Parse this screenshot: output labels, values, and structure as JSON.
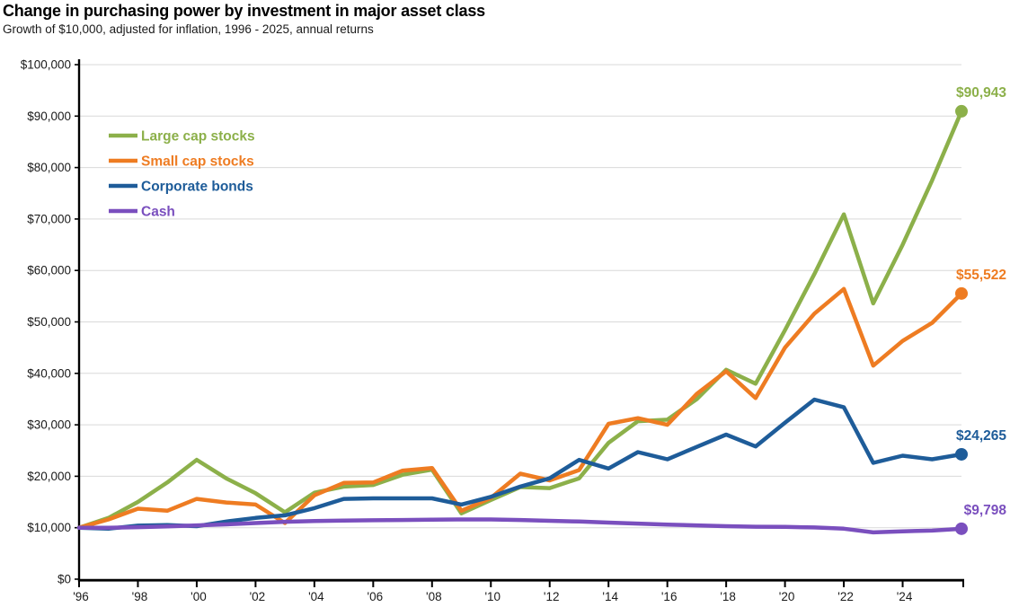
{
  "header": {
    "title": "Change in purchasing power by investment in major asset class",
    "subtitle": "Growth of $10,000, adjusted for inflation, 1996 - 2025, annual returns"
  },
  "chart_data": {
    "type": "line",
    "title": "Change in purchasing power by investment in major asset class",
    "subtitle": "Growth of $10,000, adjusted for inflation, 1996 - 2025, annual returns",
    "grid": "horizontal",
    "legend_position": "top-left",
    "colors": {
      "grid": "#D9D9D9",
      "axis": "#000000",
      "tick_text": "#1a1a1a"
    },
    "y_axis": {
      "min": 0,
      "max": 100000,
      "tick_values": [
        0,
        10000,
        20000,
        30000,
        40000,
        50000,
        60000,
        70000,
        80000,
        90000,
        100000
      ],
      "tick_labels": [
        "$0",
        "$10,000",
        "$20,000",
        "$30,000",
        "$40,000",
        "$50,000",
        "$60,000",
        "$70,000",
        "$80,000",
        "$90,000",
        "$100,000"
      ]
    },
    "x_axis": {
      "points_per_series": 31,
      "start_year": 1996,
      "end_year": 2025,
      "tick_point_indices": [
        0,
        2,
        4,
        6,
        8,
        10,
        12,
        14,
        16,
        18,
        20,
        22,
        24,
        26,
        28
      ],
      "tick_labels": [
        "'96",
        "'98",
        "'00",
        "'02",
        "'04",
        "'06",
        "'08",
        "'10",
        "'12",
        "'14",
        "'16",
        "'18",
        "'20",
        "'22",
        "'24"
      ],
      "end_tick_index": 30
    },
    "series": [
      {
        "name": "Large cap stocks",
        "color": "#8CB04A",
        "end_label": "$90,943",
        "end_value": 90943,
        "values": [
          10000,
          11900,
          15000,
          18800,
          23200,
          19600,
          16700,
          13000,
          16800,
          18000,
          18300,
          20300,
          21300,
          12800,
          15400,
          17900,
          17700,
          19600,
          26500,
          30700,
          31000,
          35000,
          40700,
          38000,
          48400,
          59300,
          70900,
          53600,
          65000,
          77500,
          90943
        ]
      },
      {
        "name": "Small cap stocks",
        "color": "#EE7C22",
        "end_label": "$55,522",
        "end_value": 55522,
        "values": [
          10000,
          11600,
          13700,
          13300,
          15600,
          14900,
          14500,
          10900,
          16300,
          18700,
          18800,
          21100,
          21600,
          13300,
          15800,
          20500,
          19200,
          21200,
          30200,
          31300,
          30000,
          36000,
          40400,
          35200,
          45000,
          51600,
          56400,
          41500,
          46300,
          49800,
          55522
        ]
      },
      {
        "name": "Corporate bonds",
        "color": "#1E5C99",
        "end_label": "$24,265",
        "end_value": 24265,
        "values": [
          10000,
          9800,
          10400,
          10500,
          10300,
          11200,
          11900,
          12400,
          13800,
          15600,
          15700,
          15700,
          15700,
          14500,
          16000,
          18000,
          19600,
          23200,
          21500,
          24700,
          23300,
          25700,
          28100,
          25800,
          30400,
          34900,
          33400,
          22600,
          24000,
          23300,
          24265
        ]
      },
      {
        "name": "Cash",
        "color": "#7A4FBE",
        "end_label": "$9,798",
        "end_value": 9798,
        "values": [
          10000,
          10000,
          10100,
          10250,
          10450,
          10650,
          10900,
          11150,
          11300,
          11400,
          11450,
          11500,
          11550,
          11600,
          11600,
          11500,
          11350,
          11200,
          11000,
          10800,
          10600,
          10450,
          10300,
          10200,
          10150,
          10050,
          9800,
          9100,
          9300,
          9450,
          9798
        ]
      }
    ]
  }
}
